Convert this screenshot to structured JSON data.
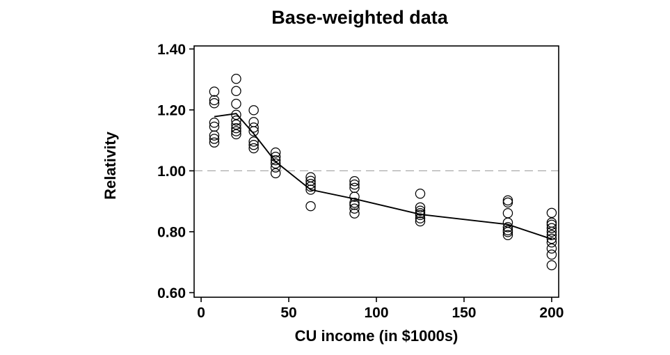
{
  "page": {
    "background": "#ffffff"
  },
  "chart_data": {
    "type": "scatter",
    "title": "Base-weighted data",
    "xlabel": "CU income (in $1000s)",
    "ylabel": "Relativity",
    "xlim": [
      -4,
      204
    ],
    "ylim": [
      0.585,
      1.41
    ],
    "grid": false,
    "colors": {
      "marker": "#000000",
      "mean_line": "#000000",
      "axis": "#000000",
      "reference_line": "#a9a9a9"
    },
    "xticks": {
      "values": [
        0,
        50,
        100,
        150,
        200
      ],
      "labels": [
        "0",
        "50",
        "100",
        "150",
        "200"
      ]
    },
    "yticks": {
      "values": [
        0.6,
        0.8,
        1.0,
        1.2,
        1.4
      ],
      "labels": [
        "0.60",
        "0.80",
        "1.00",
        "1.20",
        "1.40"
      ]
    },
    "reference_line": {
      "y": 1.0,
      "style": "dashed",
      "color": "#a9a9a9"
    },
    "marker": {
      "shape": "open-circle",
      "color": "#000000"
    },
    "series": [
      {
        "name": "observed relativities",
        "type": "scatter",
        "clusters": [
          {
            "x": 7.5,
            "y": [
              1.26,
              1.232,
              1.222,
              1.158,
              1.145,
              1.116,
              1.105,
              1.093
            ]
          },
          {
            "x": 20,
            "y": [
              1.302,
              1.262,
              1.22,
              1.184,
              1.165,
              1.152,
              1.14,
              1.13,
              1.12
            ]
          },
          {
            "x": 30,
            "y": [
              1.199,
              1.16,
              1.142,
              1.13,
              1.096,
              1.085,
              1.074
            ]
          },
          {
            "x": 42.5,
            "y": [
              1.06,
              1.046,
              1.035,
              1.024,
              1.011,
              0.992
            ]
          },
          {
            "x": 62.5,
            "y": [
              0.979,
              0.967,
              0.957,
              0.948,
              0.938,
              0.884
            ]
          },
          {
            "x": 87.5,
            "y": [
              0.966,
              0.955,
              0.944,
              0.915,
              0.895,
              0.888,
              0.876,
              0.86
            ]
          },
          {
            "x": 125,
            "y": [
              0.925,
              0.88,
              0.869,
              0.861,
              0.855,
              0.844,
              0.834
            ]
          },
          {
            "x": 175,
            "y": [
              0.903,
              0.896,
              0.861,
              0.83,
              0.815,
              0.805,
              0.799,
              0.789
            ]
          },
          {
            "x": 200,
            "y": [
              0.862,
              0.83,
              0.823,
              0.812,
              0.8,
              0.789,
              0.777,
              0.765,
              0.745,
              0.725,
              0.69
            ]
          }
        ]
      },
      {
        "name": "mean line",
        "type": "line",
        "x": [
          7.5,
          20,
          30,
          42.5,
          62.5,
          87.5,
          125,
          175,
          200
        ],
        "y": [
          1.178,
          1.188,
          1.122,
          1.03,
          0.938,
          0.908,
          0.857,
          0.824,
          0.776
        ]
      }
    ]
  }
}
